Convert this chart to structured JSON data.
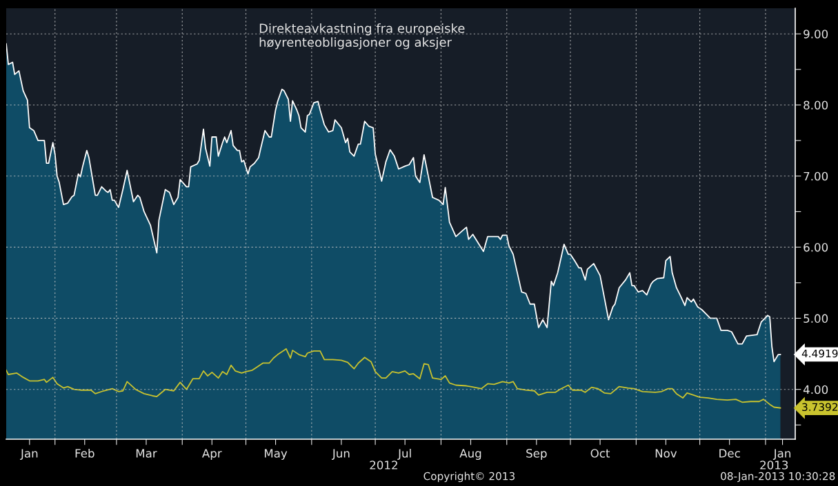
{
  "chart_data": {
    "type": "area",
    "title": "Direkteavkastning fra europeiske\nhøyrenteobligasjoner og aksjer",
    "xlim": [
      "2012-01-09",
      "2013-01-15"
    ],
    "ylim": [
      3.3,
      9.36
    ],
    "xticks": [
      {
        "value": "2012-01-20",
        "label": "Jan"
      },
      {
        "value": "2012-02-01",
        "label": null
      },
      {
        "value": "2012-02-15",
        "label": "Feb"
      },
      {
        "value": "2012-03-01",
        "label": null
      },
      {
        "value": "2012-03-15",
        "label": "Mar"
      },
      {
        "value": "2012-04-01",
        "label": null
      },
      {
        "value": "2012-04-15",
        "label": "Apr"
      },
      {
        "value": "2012-05-01",
        "label": null
      },
      {
        "value": "2012-05-15",
        "label": "May"
      },
      {
        "value": "2012-06-01",
        "label": null
      },
      {
        "value": "2012-06-15",
        "label": "Jun"
      },
      {
        "value": "2012-07-01",
        "label": null
      },
      {
        "value": "2012-07-15",
        "label": "Jul"
      },
      {
        "value": "2012-08-01",
        "label": null
      },
      {
        "value": "2012-08-15",
        "label": "Aug"
      },
      {
        "value": "2012-09-01",
        "label": null
      },
      {
        "value": "2012-09-15",
        "label": "Sep"
      },
      {
        "value": "2012-10-01",
        "label": null
      },
      {
        "value": "2012-10-15",
        "label": "Oct"
      },
      {
        "value": "2012-11-01",
        "label": null
      },
      {
        "value": "2012-11-15",
        "label": "Nov"
      },
      {
        "value": "2012-12-01",
        "label": null
      },
      {
        "value": "2012-12-15",
        "label": "Dec"
      },
      {
        "value": "2013-01-01",
        "label": null
      },
      {
        "value": "2013-01-09",
        "label": "Jan"
      }
    ],
    "x2lim": [
      "2012-01-09",
      "2013-01-15"
    ],
    "x2ticks": [
      {
        "value": "2012-07-05",
        "label": "2012"
      },
      {
        "value": "2013-01-05",
        "label": "2013"
      }
    ],
    "yticks": [
      {
        "value": 3.5,
        "label": null
      },
      {
        "value": 4,
        "label": "4.00"
      },
      {
        "value": 4.5,
        "label": null
      },
      {
        "value": 5,
        "label": "5.00"
      },
      {
        "value": 5.5,
        "label": null
      },
      {
        "value": 6,
        "label": "6.00"
      },
      {
        "value": 6.5,
        "label": null
      },
      {
        "value": 7,
        "label": "7.00"
      },
      {
        "value": 7.5,
        "label": null
      },
      {
        "value": 8,
        "label": "8.00"
      },
      {
        "value": 8.5,
        "label": null
      },
      {
        "value": 9,
        "label": "9.00"
      }
    ],
    "grid": true,
    "series": [
      {
        "color": "#ffffff",
        "x": [
          "2012-01-09",
          "2012-01-10",
          "2012-01-12",
          "2012-01-13",
          "2012-01-15",
          "2012-01-17",
          "2012-01-19",
          "2012-01-20",
          "2012-01-22",
          "2012-01-24",
          "2012-01-27",
          "2012-01-28",
          "2012-01-29",
          "2012-01-31",
          "2012-02-01",
          "2012-02-02",
          "2012-02-03",
          "2012-02-05",
          "2012-02-07",
          "2012-02-09",
          "2012-02-10",
          "2012-02-12",
          "2012-02-13",
          "2012-02-14",
          "2012-02-16",
          "2012-02-17",
          "2012-02-20",
          "2012-02-21",
          "2012-02-23",
          "2012-02-25",
          "2012-02-26",
          "2012-02-27",
          "2012-02-28",
          "2012-02-29",
          "2012-03-02",
          "2012-03-04",
          "2012-03-06",
          "2012-03-09",
          "2012-03-11",
          "2012-03-12",
          "2012-03-14",
          "2012-03-17",
          "2012-03-20",
          "2012-03-21",
          "2012-03-24",
          "2012-03-26",
          "2012-03-28",
          "2012-03-30",
          "2012-03-31",
          "2012-04-03",
          "2012-04-04",
          "2012-04-05",
          "2012-04-08",
          "2012-04-09",
          "2012-04-11",
          "2012-04-12",
          "2012-04-14",
          "2012-04-15",
          "2012-04-17",
          "2012-04-18",
          "2012-04-20",
          "2012-04-21",
          "2012-04-22",
          "2012-04-24",
          "2012-04-25",
          "2012-04-27",
          "2012-04-28",
          "2012-04-29",
          "2012-04-30",
          "2012-05-02",
          "2012-05-03",
          "2012-05-05",
          "2012-05-07",
          "2012-05-08",
          "2012-05-10",
          "2012-05-12",
          "2012-05-13",
          "2012-05-15",
          "2012-05-16",
          "2012-05-18",
          "2012-05-19",
          "2012-05-21",
          "2012-05-22",
          "2012-05-23",
          "2012-05-25",
          "2012-05-26",
          "2012-05-27",
          "2012-05-29",
          "2012-05-30",
          "2012-05-31",
          "2012-06-02",
          "2012-06-04",
          "2012-06-05",
          "2012-06-07",
          "2012-06-09",
          "2012-06-11",
          "2012-06-12",
          "2012-06-15",
          "2012-06-17",
          "2012-06-18",
          "2012-06-19",
          "2012-06-21",
          "2012-06-23",
          "2012-06-24",
          "2012-06-26",
          "2012-06-28",
          "2012-06-30",
          "2012-07-01",
          "2012-07-04",
          "2012-07-06",
          "2012-07-08",
          "2012-07-10",
          "2012-07-12",
          "2012-07-15",
          "2012-07-17",
          "2012-07-19",
          "2012-07-20",
          "2012-07-22",
          "2012-07-24",
          "2012-07-28",
          "2012-07-31",
          "2012-08-02",
          "2012-08-03",
          "2012-08-05",
          "2012-08-08",
          "2012-08-11",
          "2012-08-13",
          "2012-08-14",
          "2012-08-16",
          "2012-08-21",
          "2012-08-23",
          "2012-08-28",
          "2012-08-29",
          "2012-08-30",
          "2012-09-01",
          "2012-09-02",
          "2012-09-04",
          "2012-09-08",
          "2012-09-10",
          "2012-09-12",
          "2012-09-14",
          "2012-09-16",
          "2012-09-18",
          "2012-09-20",
          "2012-09-22",
          "2012-09-23",
          "2012-09-25",
          "2012-09-28",
          "2012-09-30",
          "2012-10-01",
          "2012-10-03",
          "2012-10-05",
          "2012-10-06",
          "2012-10-08",
          "2012-10-09",
          "2012-10-12",
          "2012-10-15",
          "2012-10-17",
          "2012-10-19",
          "2012-10-21",
          "2012-10-22",
          "2012-10-24",
          "2012-10-27",
          "2012-10-29",
          "2012-10-30",
          "2012-10-31",
          "2012-11-02",
          "2012-11-04",
          "2012-11-06",
          "2012-11-08",
          "2012-11-09",
          "2012-11-11",
          "2012-11-14",
          "2012-11-15",
          "2012-11-17",
          "2012-11-18",
          "2012-11-20",
          "2012-11-22",
          "2012-11-24",
          "2012-11-25",
          "2012-11-27",
          "2012-11-28",
          "2012-11-30",
          "2012-12-02",
          "2012-12-04",
          "2012-12-06",
          "2012-12-09",
          "2012-12-11",
          "2012-12-14",
          "2012-12-16",
          "2012-12-19",
          "2012-12-21",
          "2012-12-23",
          "2012-12-28",
          "2012-12-30",
          "2013-01-02",
          "2013-01-03",
          "2013-01-04",
          "2013-01-05",
          "2013-01-07",
          "2013-01-08"
        ],
        "values": [
          8.86,
          8.57,
          8.6,
          8.43,
          8.48,
          8.2,
          8.07,
          7.68,
          7.64,
          7.5,
          7.5,
          7.18,
          7.18,
          7.47,
          7.31,
          7.0,
          6.91,
          6.6,
          6.62,
          6.71,
          6.73,
          7.03,
          6.99,
          7.13,
          7.36,
          7.26,
          6.73,
          6.73,
          6.85,
          6.79,
          6.77,
          6.81,
          6.66,
          6.66,
          6.56,
          6.81,
          7.08,
          6.64,
          6.73,
          6.7,
          6.5,
          6.31,
          5.92,
          6.38,
          6.81,
          6.77,
          6.6,
          6.7,
          6.95,
          6.85,
          6.85,
          7.13,
          7.17,
          7.22,
          7.66,
          7.39,
          7.14,
          7.55,
          7.55,
          7.28,
          7.47,
          7.55,
          7.47,
          7.64,
          7.43,
          7.36,
          7.36,
          7.2,
          7.22,
          7.03,
          7.13,
          7.18,
          7.26,
          7.39,
          7.64,
          7.55,
          7.55,
          7.93,
          8.05,
          8.22,
          8.2,
          8.08,
          7.77,
          8.06,
          7.93,
          7.85,
          7.68,
          7.62,
          7.85,
          7.87,
          8.03,
          8.05,
          7.93,
          7.72,
          7.62,
          7.64,
          7.79,
          7.68,
          7.47,
          7.53,
          7.34,
          7.28,
          7.45,
          7.45,
          7.77,
          7.7,
          7.68,
          7.31,
          6.93,
          7.2,
          7.37,
          7.28,
          7.1,
          7.14,
          7.16,
          7.26,
          7.0,
          6.91,
          7.3,
          6.7,
          6.66,
          6.6,
          6.84,
          6.35,
          6.15,
          6.23,
          6.28,
          6.11,
          6.18,
          5.94,
          6.15,
          6.15,
          6.11,
          6.17,
          6.17,
          6.02,
          5.9,
          5.37,
          5.35,
          5.2,
          5.2,
          4.87,
          4.98,
          4.87,
          5.52,
          5.46,
          5.64,
          6.04,
          5.9,
          5.9,
          5.81,
          5.71,
          5.71,
          5.54,
          5.69,
          5.77,
          5.6,
          5.29,
          4.98,
          5.16,
          5.2,
          5.43,
          5.54,
          5.64,
          5.46,
          5.46,
          5.37,
          5.39,
          5.33,
          5.48,
          5.52,
          5.56,
          5.57,
          5.81,
          5.87,
          5.64,
          5.43,
          5.31,
          5.18,
          5.29,
          5.23,
          5.27,
          5.16,
          5.12,
          5.06,
          5.0,
          5.0,
          4.83,
          4.83,
          4.81,
          4.64,
          4.64,
          4.75,
          4.77,
          4.95,
          5.04,
          5.02,
          4.6,
          4.39,
          4.49,
          4.4919
        ]
      },
      {
        "type": "line",
        "color": "#c9c32e",
        "x": [
          "2012-01-09",
          "2012-01-10",
          "2012-01-14",
          "2012-01-17",
          "2012-01-20",
          "2012-01-24",
          "2012-01-27",
          "2012-01-28",
          "2012-01-31",
          "2012-02-02",
          "2012-02-05",
          "2012-02-07",
          "2012-02-10",
          "2012-02-13",
          "2012-02-18",
          "2012-02-20",
          "2012-02-24",
          "2012-02-28",
          "2012-03-02",
          "2012-03-04",
          "2012-03-06",
          "2012-03-10",
          "2012-03-14",
          "2012-03-18",
          "2012-03-20",
          "2012-03-24",
          "2012-03-28",
          "2012-03-31",
          "2012-04-03",
          "2012-04-06",
          "2012-04-09",
          "2012-04-11",
          "2012-04-13",
          "2012-04-15",
          "2012-04-18",
          "2012-04-20",
          "2012-04-22",
          "2012-04-24",
          "2012-04-26",
          "2012-04-29",
          "2012-05-01",
          "2012-05-04",
          "2012-05-06",
          "2012-05-09",
          "2012-05-12",
          "2012-05-14",
          "2012-05-16",
          "2012-05-20",
          "2012-05-22",
          "2012-05-23",
          "2012-05-26",
          "2012-05-29",
          "2012-05-30",
          "2012-06-02",
          "2012-06-05",
          "2012-06-07",
          "2012-06-11",
          "2012-06-15",
          "2012-06-18",
          "2012-06-21",
          "2012-06-23",
          "2012-06-26",
          "2012-06-29",
          "2012-07-01",
          "2012-07-04",
          "2012-07-06",
          "2012-07-09",
          "2012-07-12",
          "2012-07-15",
          "2012-07-17",
          "2012-07-19",
          "2012-07-22",
          "2012-07-24",
          "2012-07-26",
          "2012-07-28",
          "2012-08-01",
          "2012-08-03",
          "2012-08-05",
          "2012-08-08",
          "2012-08-13",
          "2012-08-15",
          "2012-08-20",
          "2012-08-23",
          "2012-08-26",
          "2012-08-30",
          "2012-09-02",
          "2012-09-04",
          "2012-09-06",
          "2012-09-10",
          "2012-09-14",
          "2012-09-16",
          "2012-09-20",
          "2012-09-24",
          "2012-09-26",
          "2012-09-30",
          "2012-10-02",
          "2012-10-06",
          "2012-10-08",
          "2012-10-11",
          "2012-10-14",
          "2012-10-17",
          "2012-10-20",
          "2012-10-24",
          "2012-10-28",
          "2012-10-31",
          "2012-11-04",
          "2012-11-10",
          "2012-11-13",
          "2012-11-16",
          "2012-11-18",
          "2012-11-20",
          "2012-11-23",
          "2012-11-25",
          "2012-11-28",
          "2012-12-01",
          "2012-12-05",
          "2012-12-09",
          "2012-12-14",
          "2012-12-18",
          "2012-12-21",
          "2012-12-25",
          "2012-12-29",
          "2012-12-31",
          "2013-01-03",
          "2013-01-05",
          "2013-01-08"
        ],
        "values": [
          4.27,
          4.21,
          4.23,
          4.17,
          4.12,
          4.12,
          4.14,
          4.1,
          4.17,
          4.08,
          4.02,
          4.04,
          4.0,
          3.99,
          3.99,
          3.94,
          3.98,
          4.01,
          3.97,
          3.98,
          4.11,
          4.0,
          3.94,
          3.91,
          3.9,
          4.0,
          3.98,
          4.1,
          4.0,
          4.15,
          4.15,
          4.26,
          4.19,
          4.24,
          4.16,
          4.25,
          4.21,
          4.34,
          4.26,
          4.23,
          4.25,
          4.27,
          4.31,
          4.37,
          4.37,
          4.44,
          4.49,
          4.57,
          4.44,
          4.55,
          4.49,
          4.46,
          4.51,
          4.54,
          4.54,
          4.42,
          4.42,
          4.41,
          4.38,
          4.29,
          4.37,
          4.45,
          4.39,
          4.25,
          4.16,
          4.16,
          4.25,
          4.23,
          4.26,
          4.21,
          4.22,
          4.15,
          4.36,
          4.35,
          4.16,
          4.14,
          4.19,
          4.09,
          4.06,
          4.05,
          4.04,
          4.01,
          4.08,
          4.07,
          4.11,
          4.09,
          4.11,
          4.01,
          3.99,
          3.98,
          3.92,
          3.96,
          3.96,
          4.0,
          4.06,
          3.99,
          3.99,
          3.96,
          4.03,
          4.01,
          3.95,
          3.94,
          4.04,
          4.02,
          4.01,
          3.97,
          3.96,
          3.97,
          4.01,
          4.01,
          3.94,
          3.88,
          3.95,
          3.92,
          3.89,
          3.88,
          3.86,
          3.85,
          3.86,
          3.82,
          3.83,
          3.83,
          3.86,
          3.79,
          3.75,
          3.7392
        ]
      }
    ],
    "annotations": [
      {
        "text": "4.4919",
        "x": "2013-01-08",
        "y": 4.4919
      },
      {
        "text": "3.7392",
        "x": "2013-01-08",
        "y": 3.7392
      },
      "Copyright© 2013",
      "08-Jan-2013 10:30:28"
    ]
  }
}
